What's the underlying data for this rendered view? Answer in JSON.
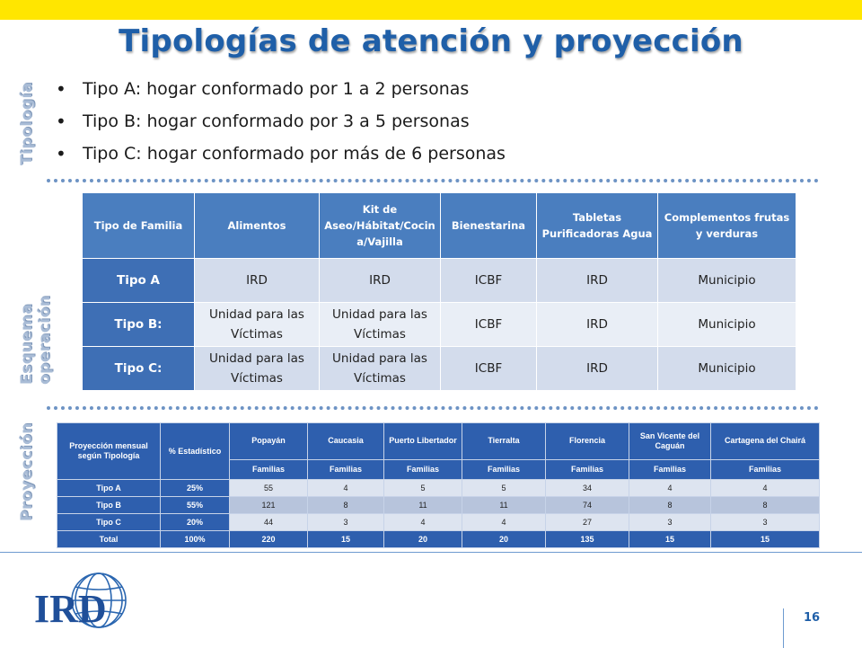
{
  "title": "Tipologías de atención y proyección",
  "side_labels": {
    "tipologia": "Tipología",
    "esquema": "Esquema operación",
    "proyeccion": "Proyección"
  },
  "bullets": [
    "Tipo A: hogar conformado por 1 a 2 personas",
    "Tipo B: hogar conformado por 3 a 5 personas",
    "Tipo C: hogar conformado por más de 6 personas"
  ],
  "schema_table": {
    "headers": [
      "Tipo de Familia",
      "Alimentos",
      "Kit de Aseo/Hábitat/Cocin a/Vajilla",
      "Bienestarina",
      "Tabletas Purificadoras Agua",
      "Complementos frutas y verduras"
    ],
    "rows": [
      [
        "Tipo A",
        "IRD",
        "IRD",
        "ICBF",
        "IRD",
        "Municipio"
      ],
      [
        "Tipo B:",
        "Unidad para las Víctimas",
        "Unidad para las Víctimas",
        "ICBF",
        "IRD",
        "Municipio"
      ],
      [
        "Tipo C:",
        "Unidad para las Víctimas",
        "Unidad para las Víctimas",
        "ICBF",
        "IRD",
        "Municipio"
      ]
    ]
  },
  "projection_table": {
    "header_left": [
      "Proyección mensual según Tipología",
      "% Estadístico"
    ],
    "cities": [
      "Popayán",
      "Caucasia",
      "Puerto Libertador",
      "Tierralta",
      "Florencia",
      "San Vicente del Caguán",
      "Cartagena del Chairá"
    ],
    "subheader": "Familias",
    "rows": [
      [
        "Tipo A",
        "25%",
        "55",
        "4",
        "5",
        "5",
        "34",
        "4",
        "4"
      ],
      [
        "Tipo B",
        "55%",
        "121",
        "8",
        "11",
        "11",
        "74",
        "8",
        "8"
      ],
      [
        "Tipo C",
        "20%",
        "44",
        "3",
        "4",
        "4",
        "27",
        "3",
        "3"
      ],
      [
        "Total",
        "100%",
        "220",
        "15",
        "20",
        "20",
        "135",
        "15",
        "15"
      ]
    ]
  },
  "logo_text": "IRD",
  "page_number": "16",
  "colors": {
    "top_bar": "#ffe600",
    "title": "#1f5fa8",
    "header_blue": "#4a7ebf",
    "dark_blue": "#2e5fae"
  }
}
